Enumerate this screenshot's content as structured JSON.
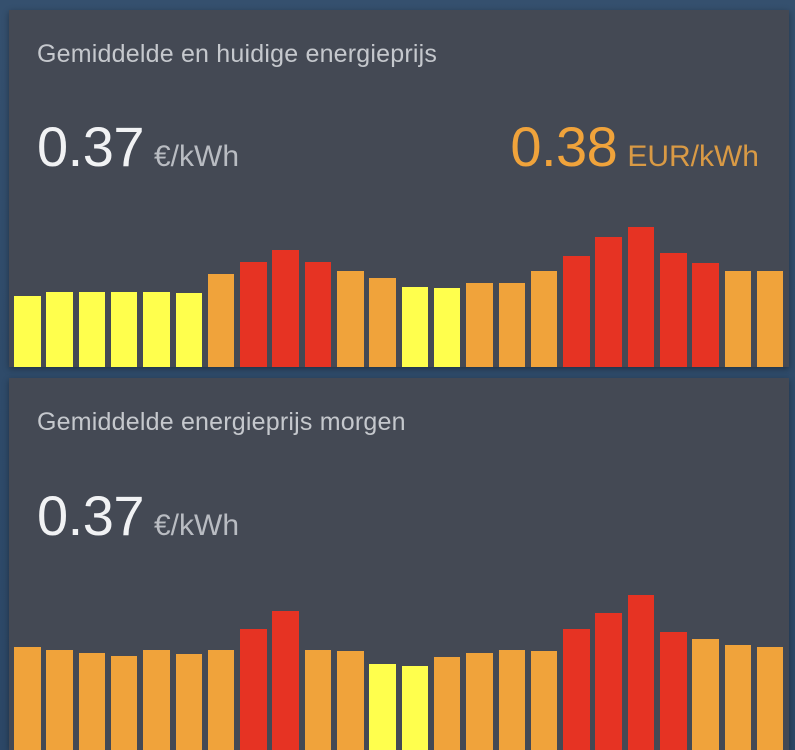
{
  "colors": {
    "low": "#ffff4d",
    "mid": "#f0a33b",
    "high": "#e63323",
    "card_bg": "#444954",
    "accent_text": "#f0a33b"
  },
  "card_today": {
    "title": "Gemiddelde en huidige energieprijs",
    "average_value": "0.37",
    "average_unit": "€/kWh",
    "current_value": "0.38",
    "current_unit": "EUR/kWh"
  },
  "card_tomorrow": {
    "title": "Gemiddelde energieprijs morgen",
    "average_value": "0.37",
    "average_unit": "€/kWh"
  },
  "chart_data": [
    {
      "type": "bar",
      "series": [
        {
          "values": [
            0.55,
            0.58,
            0.58,
            0.58,
            0.58,
            0.57,
            0.72,
            0.81,
            0.9,
            0.81,
            0.74,
            0.69,
            0.62,
            0.61,
            0.65,
            0.65,
            0.74,
            0.86,
            1.0,
            1.08,
            0.88,
            0.8,
            0.74,
            0.74
          ],
          "levels": [
            "low",
            "low",
            "low",
            "low",
            "low",
            "low",
            "mid",
            "high",
            "high",
            "high",
            "mid",
            "mid",
            "low",
            "low",
            "mid",
            "mid",
            "mid",
            "high",
            "high",
            "high",
            "high",
            "high",
            "mid",
            "mid"
          ]
        }
      ]
    },
    {
      "type": "bar",
      "series": [
        {
          "values": [
            0.7,
            0.68,
            0.66,
            0.64,
            0.68,
            0.65,
            0.68,
            0.82,
            0.94,
            0.68,
            0.67,
            0.58,
            0.57,
            0.63,
            0.66,
            0.68,
            0.67,
            0.82,
            0.93,
            1.05,
            0.8,
            0.75,
            0.71,
            0.7
          ],
          "levels": [
            "mid",
            "mid",
            "mid",
            "mid",
            "mid",
            "mid",
            "mid",
            "high",
            "high",
            "mid",
            "mid",
            "low",
            "low",
            "mid",
            "mid",
            "mid",
            "mid",
            "high",
            "high",
            "high",
            "high",
            "mid",
            "mid",
            "mid"
          ]
        }
      ]
    }
  ]
}
